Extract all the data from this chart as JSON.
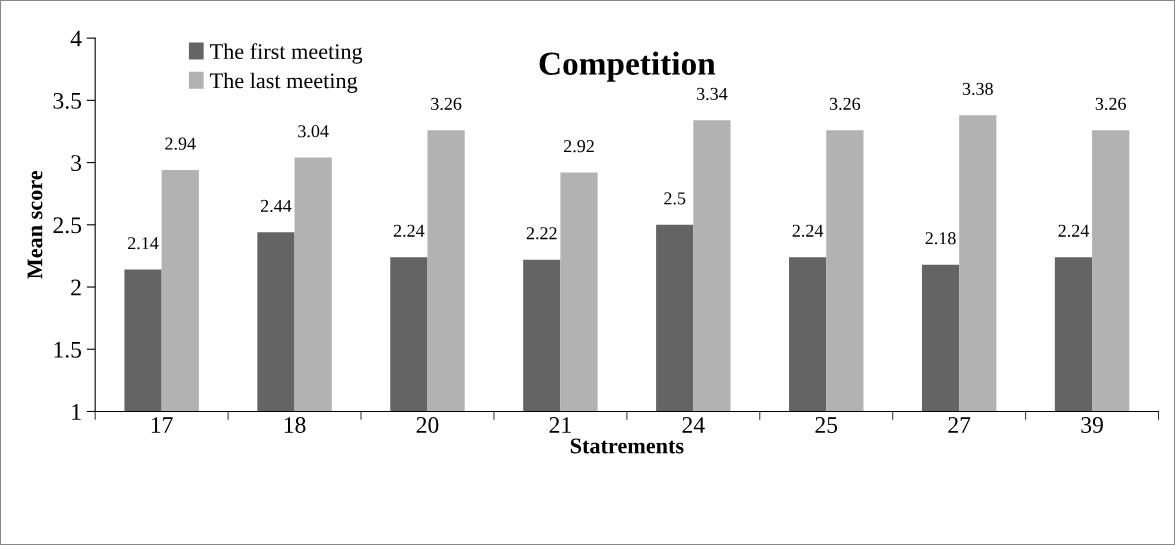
{
  "chart_data": {
    "type": "bar",
    "title": "Competition",
    "xlabel": "Statrements",
    "ylabel": "Mean score",
    "categories": [
      "17",
      "18",
      "20",
      "21",
      "24",
      "25",
      "27",
      "39"
    ],
    "series": [
      {
        "name": "The first meeting",
        "color": "#646464",
        "values": [
          2.14,
          2.44,
          2.24,
          2.22,
          2.5,
          2.24,
          2.18,
          2.24
        ]
      },
      {
        "name": "The last meeting",
        "color": "#b2b2b2",
        "values": [
          2.94,
          3.04,
          3.26,
          2.92,
          3.34,
          3.26,
          3.38,
          3.26
        ]
      }
    ],
    "ylim": [
      1,
      4
    ],
    "yticks": [
      1,
      1.5,
      2,
      2.5,
      3,
      3.5,
      4
    ],
    "data_labels": true,
    "grid": false,
    "legend": "top left"
  }
}
